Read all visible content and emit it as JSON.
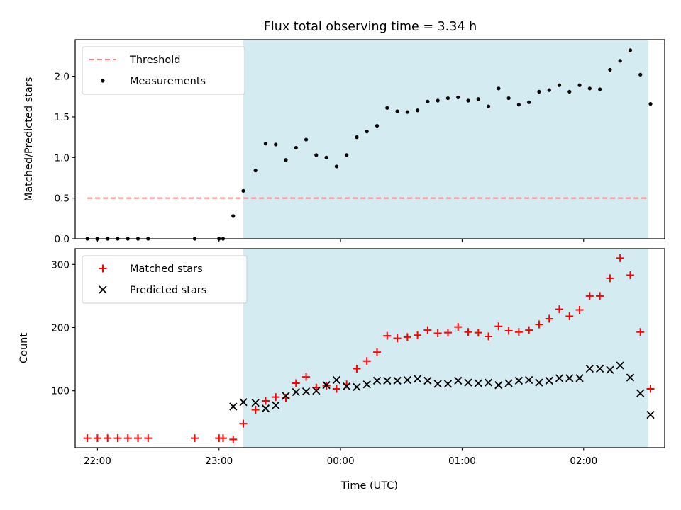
{
  "chart_data": {
    "type": "scatter",
    "title": "Flux total observing time = 3.34 h",
    "xlabel": "Time (UTC)",
    "xlim": [
      "21:49",
      "02:40"
    ],
    "xticks": [
      "22:00",
      "23:00",
      "00:00",
      "01:00",
      "02:00"
    ],
    "highlight_span": [
      "23:12",
      "02:32"
    ],
    "highlight_color": "#d4ebf1",
    "panels": [
      {
        "ylabel": "Matched/Predicted stars",
        "ylim": [
          0,
          2.45
        ],
        "yticks": [
          "0.0",
          "0.5",
          "1.0",
          "1.5",
          "2.0"
        ],
        "legend": {
          "position": "upper-left",
          "entries": [
            "Threshold",
            "Measurements"
          ]
        },
        "series": [
          {
            "name": "Threshold",
            "kind": "dashed-line",
            "color": "#ff7f7f",
            "x": [
              "21:55",
              "02:32"
            ],
            "y": [
              0.5,
              0.5
            ]
          },
          {
            "name": "Measurements",
            "kind": "dot",
            "color": "#000000",
            "points": [
              [
                "21:55",
                0.0
              ],
              [
                "22:00",
                0.0
              ],
              [
                "22:05",
                0.0
              ],
              [
                "22:10",
                0.0
              ],
              [
                "22:15",
                0.0
              ],
              [
                "22:20",
                0.0
              ],
              [
                "22:25",
                0.0
              ],
              [
                "22:48",
                0.0
              ],
              [
                "23:00",
                0.0
              ],
              [
                "23:02",
                0.0
              ],
              [
                "23:07",
                0.28
              ],
              [
                "23:12",
                0.59
              ],
              [
                "23:18",
                0.84
              ],
              [
                "23:23",
                1.17
              ],
              [
                "23:28",
                1.16
              ],
              [
                "23:33",
                0.97
              ],
              [
                "23:38",
                1.12
              ],
              [
                "23:43",
                1.22
              ],
              [
                "23:48",
                1.03
              ],
              [
                "23:53",
                1.0
              ],
              [
                "23:58",
                0.89
              ],
              [
                "00:03",
                1.03
              ],
              [
                "00:08",
                1.25
              ],
              [
                "00:13",
                1.32
              ],
              [
                "00:18",
                1.39
              ],
              [
                "00:23",
                1.61
              ],
              [
                "00:28",
                1.57
              ],
              [
                "00:33",
                1.56
              ],
              [
                "00:38",
                1.58
              ],
              [
                "00:43",
                1.69
              ],
              [
                "00:48",
                1.7
              ],
              [
                "00:53",
                1.73
              ],
              [
                "00:58",
                1.74
              ],
              [
                "01:03",
                1.7
              ],
              [
                "01:08",
                1.72
              ],
              [
                "01:13",
                1.63
              ],
              [
                "01:18",
                1.85
              ],
              [
                "01:23",
                1.73
              ],
              [
                "01:28",
                1.65
              ],
              [
                "01:33",
                1.68
              ],
              [
                "01:38",
                1.81
              ],
              [
                "01:43",
                1.83
              ],
              [
                "01:48",
                1.89
              ],
              [
                "01:53",
                1.81
              ],
              [
                "01:58",
                1.89
              ],
              [
                "02:03",
                1.85
              ],
              [
                "02:08",
                1.84
              ],
              [
                "02:13",
                2.08
              ],
              [
                "02:18",
                2.19
              ],
              [
                "02:23",
                2.32
              ],
              [
                "02:28",
                2.02
              ],
              [
                "02:33",
                1.66
              ]
            ]
          }
        ]
      },
      {
        "ylabel": "Count",
        "ylim": [
          10,
          325
        ],
        "yticks": [
          "100",
          "200",
          "300"
        ],
        "legend": {
          "position": "upper-left",
          "entries": [
            "Matched stars",
            "Predicted stars"
          ]
        },
        "series": [
          {
            "name": "Matched stars",
            "kind": "plus",
            "color": "#ff0000",
            "points": [
              [
                "21:55",
                25
              ],
              [
                "22:00",
                25
              ],
              [
                "22:05",
                25
              ],
              [
                "22:10",
                25
              ],
              [
                "22:15",
                25
              ],
              [
                "22:20",
                25
              ],
              [
                "22:25",
                25
              ],
              [
                "22:48",
                25
              ],
              [
                "23:00",
                25
              ],
              [
                "23:02",
                25
              ],
              [
                "23:07",
                23
              ],
              [
                "23:12",
                48
              ],
              [
                "23:18",
                70
              ],
              [
                "23:23",
                84
              ],
              [
                "23:28",
                90
              ],
              [
                "23:33",
                89
              ],
              [
                "23:38",
                112
              ],
              [
                "23:43",
                122
              ],
              [
                "23:48",
                105
              ],
              [
                "23:53",
                108
              ],
              [
                "23:58",
                103
              ],
              [
                "00:03",
                110
              ],
              [
                "00:08",
                135
              ],
              [
                "00:13",
                147
              ],
              [
                "00:18",
                161
              ],
              [
                "00:23",
                187
              ],
              [
                "00:28",
                183
              ],
              [
                "00:33",
                185
              ],
              [
                "00:38",
                188
              ],
              [
                "00:43",
                196
              ],
              [
                "00:48",
                191
              ],
              [
                "00:53",
                192
              ],
              [
                "00:58",
                201
              ],
              [
                "01:03",
                193
              ],
              [
                "01:08",
                192
              ],
              [
                "01:13",
                186
              ],
              [
                "01:18",
                202
              ],
              [
                "01:23",
                195
              ],
              [
                "01:28",
                193
              ],
              [
                "01:33",
                196
              ],
              [
                "01:38",
                205
              ],
              [
                "01:43",
                214
              ],
              [
                "01:48",
                229
              ],
              [
                "01:53",
                218
              ],
              [
                "01:58",
                228
              ],
              [
                "02:03",
                250
              ],
              [
                "02:08",
                250
              ],
              [
                "02:13",
                278
              ],
              [
                "02:18",
                310
              ],
              [
                "02:23",
                283
              ],
              [
                "02:28",
                193
              ],
              [
                "02:33",
                103
              ]
            ]
          },
          {
            "name": "Predicted stars",
            "kind": "x",
            "color": "#000000",
            "points": [
              [
                "23:07",
                75
              ],
              [
                "23:12",
                82
              ],
              [
                "23:18",
                81
              ],
              [
                "23:23",
                72
              ],
              [
                "23:28",
                77
              ],
              [
                "23:33",
                92
              ],
              [
                "23:38",
                98
              ],
              [
                "23:43",
                99
              ],
              [
                "23:48",
                100
              ],
              [
                "23:53",
                109
              ],
              [
                "23:58",
                117
              ],
              [
                "00:03",
                107
              ],
              [
                "00:08",
                106
              ],
              [
                "00:13",
                110
              ],
              [
                "00:18",
                116
              ],
              [
                "00:23",
                116
              ],
              [
                "00:28",
                116
              ],
              [
                "00:33",
                117
              ],
              [
                "00:38",
                119
              ],
              [
                "00:43",
                116
              ],
              [
                "00:48",
                111
              ],
              [
                "00:53",
                111
              ],
              [
                "00:58",
                116
              ],
              [
                "01:03",
                113
              ],
              [
                "01:08",
                112
              ],
              [
                "01:13",
                113
              ],
              [
                "01:18",
                109
              ],
              [
                "01:23",
                112
              ],
              [
                "01:28",
                116
              ],
              [
                "01:33",
                117
              ],
              [
                "01:38",
                113
              ],
              [
                "01:43",
                116
              ],
              [
                "01:48",
                120
              ],
              [
                "01:53",
                120
              ],
              [
                "01:58",
                120
              ],
              [
                "02:03",
                135
              ],
              [
                "02:08",
                135
              ],
              [
                "02:13",
                133
              ],
              [
                "02:18",
                140
              ],
              [
                "02:23",
                121
              ],
              [
                "02:28",
                96
              ],
              [
                "02:33",
                62
              ]
            ]
          }
        ]
      }
    ]
  }
}
